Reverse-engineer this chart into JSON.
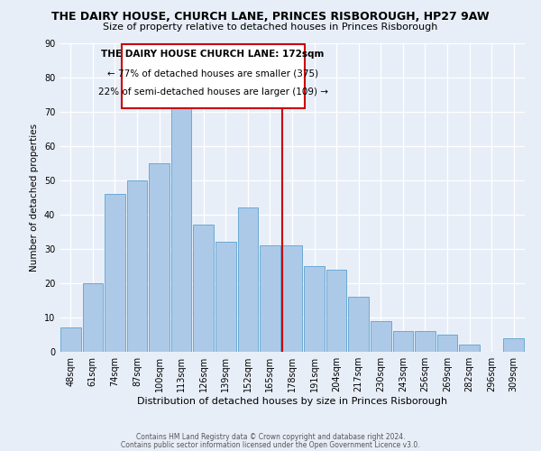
{
  "title": "THE DAIRY HOUSE, CHURCH LANE, PRINCES RISBOROUGH, HP27 9AW",
  "subtitle": "Size of property relative to detached houses in Princes Risborough",
  "xlabel": "Distribution of detached houses by size in Princes Risborough",
  "ylabel": "Number of detached properties",
  "footer_line1": "Contains HM Land Registry data © Crown copyright and database right 2024.",
  "footer_line2": "Contains public sector information licensed under the Open Government Licence v3.0.",
  "categories": [
    "48sqm",
    "61sqm",
    "74sqm",
    "87sqm",
    "100sqm",
    "113sqm",
    "126sqm",
    "139sqm",
    "152sqm",
    "165sqm",
    "178sqm",
    "191sqm",
    "204sqm",
    "217sqm",
    "230sqm",
    "243sqm",
    "256sqm",
    "269sqm",
    "282sqm",
    "296sqm",
    "309sqm"
  ],
  "values": [
    7,
    20,
    46,
    50,
    55,
    73,
    37,
    32,
    42,
    31,
    31,
    25,
    24,
    16,
    9,
    6,
    6,
    5,
    2,
    0,
    4
  ],
  "bar_color": "#adc9e8",
  "bar_edge_color": "#6aaad4",
  "ylim": [
    0,
    90
  ],
  "yticks": [
    0,
    10,
    20,
    30,
    40,
    50,
    60,
    70,
    80,
    90
  ],
  "property_line_x": 9.54,
  "property_line_color": "#cc0000",
  "annotation_title": "THE DAIRY HOUSE CHURCH LANE: 172sqm",
  "annotation_line1": "← 77% of detached houses are smaller (375)",
  "annotation_line2": "22% of semi-detached houses are larger (109) →",
  "annotation_box_color": "#ffffff",
  "annotation_box_edge": "#cc0000",
  "background_color": "#e8eef8",
  "title_fontsize": 9.0,
  "subtitle_fontsize": 8.0,
  "ylabel_fontsize": 7.5,
  "xlabel_fontsize": 8.0,
  "tick_fontsize": 7.0,
  "annot_fontsize": 7.5,
  "footer_fontsize": 5.5
}
